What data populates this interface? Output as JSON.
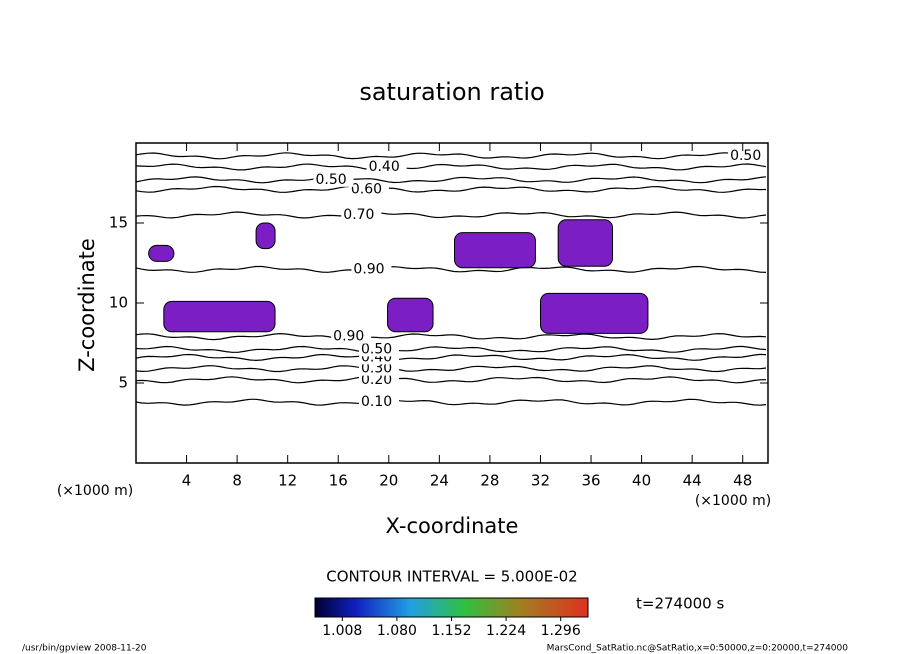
{
  "chart_data": {
    "type": "contour",
    "title": "saturation ratio",
    "x_label": "X-coordinate",
    "y_label": "Z-coordinate",
    "y_unit": "(×1000 m)",
    "x_unit": "(×1000 m)",
    "xlim": [
      0,
      50
    ],
    "ylim": [
      0,
      20
    ],
    "xticks": [
      4,
      8,
      12,
      16,
      20,
      24,
      28,
      32,
      36,
      40,
      44,
      48
    ],
    "yticks": [
      5,
      10,
      15
    ],
    "line_color": "#000000",
    "contours": [
      {
        "level": {
          "value": 0.1,
          "label": "0.10"
        },
        "z": 3.8,
        "x": 17.8
      },
      {
        "level": {
          "value": 0.2,
          "label": "0.20"
        },
        "z": 5.2,
        "x": 17.8
      },
      {
        "level": {
          "value": 0.3,
          "label": "0.30"
        },
        "z": 5.9,
        "x": 17.8
      },
      {
        "level": {
          "value": 0.4,
          "label": "0.40"
        },
        "z": 6.6,
        "x": 17.8
      },
      {
        "level": {
          "value": 0.5,
          "label": "0.50"
        },
        "z": 7.1,
        "x": 17.8
      },
      {
        "level": {
          "value": 0.9,
          "label": "0.90"
        },
        "z": 7.9,
        "x": 15.6
      },
      {
        "level": {
          "value": 0.9,
          "label": "0.90"
        },
        "z": 12.1,
        "x": 17.2
      },
      {
        "level": {
          "value": 0.7,
          "label": "0.70"
        },
        "z": 15.5,
        "x": 16.4
      },
      {
        "level": {
          "value": 0.6,
          "label": "0.60"
        },
        "z": 17.1,
        "x": 17.0
      },
      {
        "level": {
          "value": 0.5,
          "label": "0.50"
        },
        "z": 17.7,
        "x": 14.2
      },
      {
        "level": {
          "value": 0.4,
          "label": "0.40"
        },
        "z": 18.5,
        "x": 18.4
      },
      {
        "level": {
          "value": 0.5,
          "label": "0.50"
        },
        "z": 19.2,
        "x": 47.0
      }
    ],
    "regions": {
      "color": "#7b1fc4",
      "items": [
        {
          "x": [
            2.2,
            11.0
          ],
          "z": [
            8.2,
            10.1
          ]
        },
        {
          "x": [
            19.9,
            23.5
          ],
          "z": [
            8.2,
            10.3
          ]
        },
        {
          "x": [
            32.0,
            40.5
          ],
          "z": [
            8.1,
            10.6
          ]
        },
        {
          "x": [
            25.2,
            31.6
          ],
          "z": [
            12.2,
            14.4
          ]
        },
        {
          "x": [
            33.4,
            37.7
          ],
          "z": [
            12.3,
            15.2
          ]
        },
        {
          "x": [
            1.0,
            3.0
          ],
          "z": [
            12.6,
            13.6
          ]
        },
        {
          "x": [
            9.5,
            11.0
          ],
          "z": [
            13.4,
            15.0
          ]
        }
      ]
    },
    "contour_interval": "CONTOUR INTERVAL = 5.000E-02",
    "colorbar": {
      "clim": [
        0.972,
        1.332
      ],
      "ticks": [
        1.008,
        {
          "value": 1.08,
          "label": "1.080"
        },
        1.152,
        1.224,
        1.296
      ]
    },
    "time_label": "t=274000 s",
    "footer_left": "/usr/bin/gpview  2008-11-20",
    "footer_right": "MarsCond_SatRatio.nc@SatRatio,x=0:50000,z=0:20000,t=274000"
  }
}
